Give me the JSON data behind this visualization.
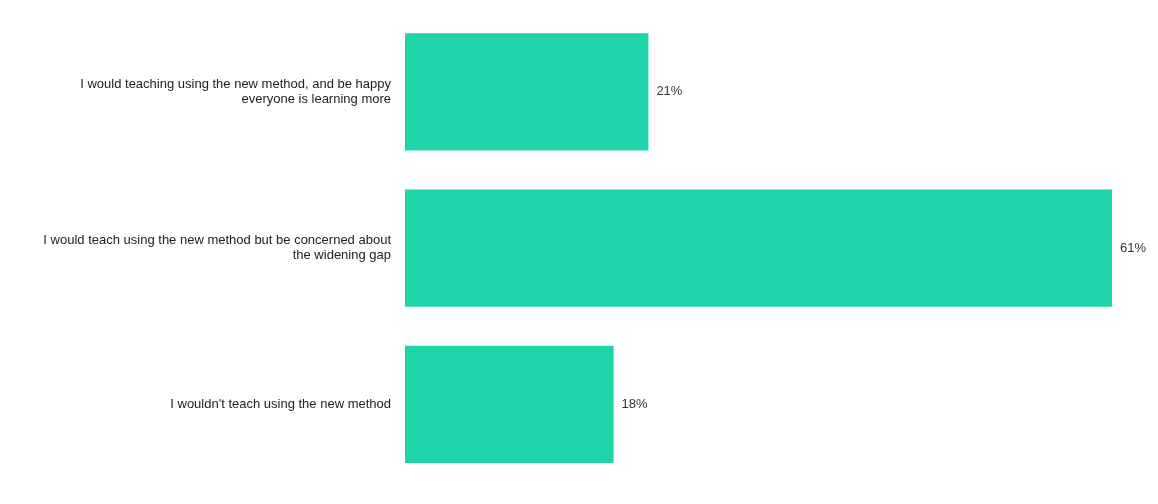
{
  "chart_data": {
    "type": "bar",
    "orientation": "horizontal",
    "categories": [
      "I would teaching using the new method, and be happy everyone is learning more",
      "I would teach using the new method but be concerned about the widening gap",
      "I wouldn't teach using the new method"
    ],
    "values": [
      21,
      61,
      18
    ],
    "value_labels": [
      "21%",
      "61%",
      "18%"
    ],
    "color": "#1fd4a8",
    "xlim": [
      0,
      61
    ],
    "tick_labels": "y",
    "legend": false
  }
}
